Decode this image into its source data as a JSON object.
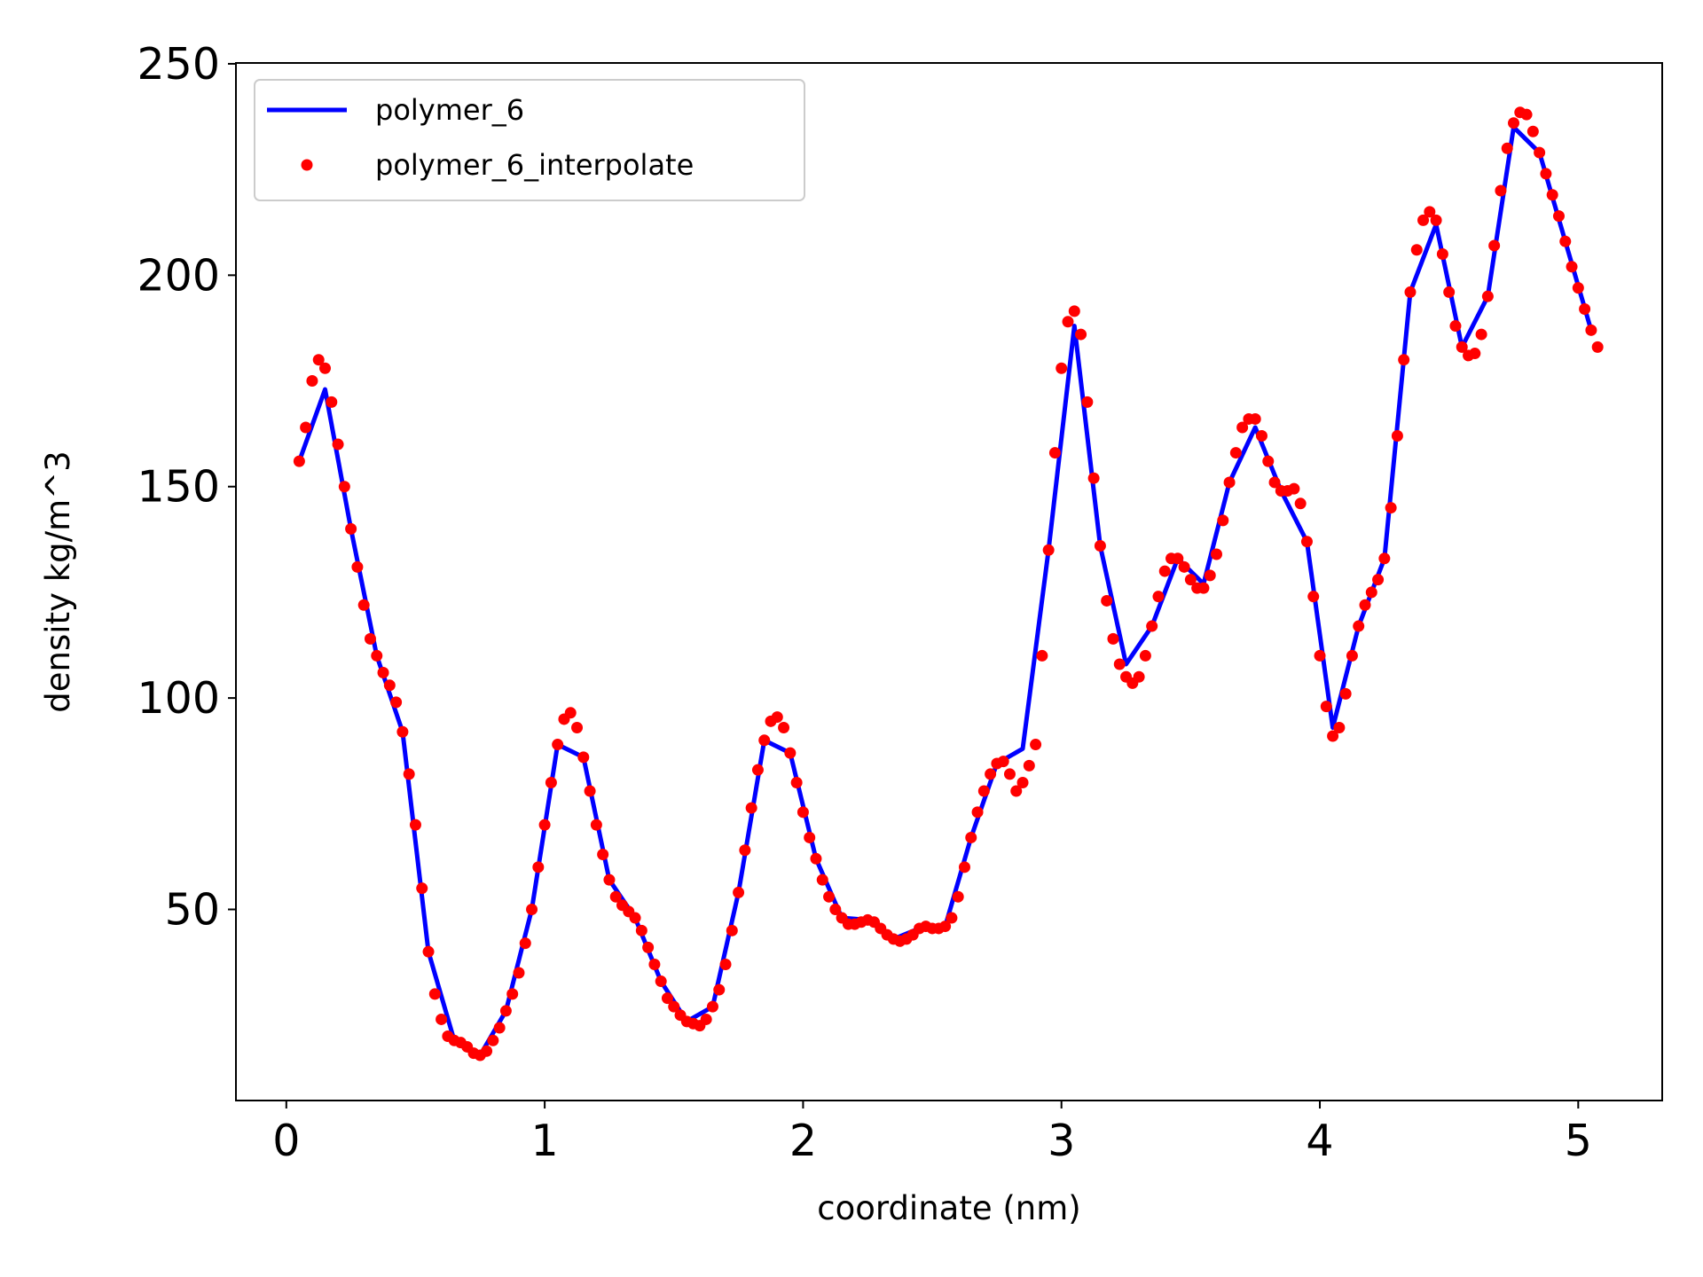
{
  "chart_data": {
    "type": "line",
    "x_label": "coordinate (nm)",
    "y_label": "density kg/m^3",
    "xlim": [
      -0.195,
      5.325
    ],
    "ylim": [
      4.8,
      250.2
    ],
    "xticks": [
      0,
      1,
      2,
      3,
      4,
      5
    ],
    "yticks": [
      50,
      100,
      150,
      200,
      250
    ],
    "grid": false,
    "legend_position": "upper-left",
    "series": [
      {
        "name": "polymer_6",
        "color": "#0000ff",
        "style": "line",
        "x": [
          0.05,
          0.15,
          0.25,
          0.35,
          0.45,
          0.55,
          0.65,
          0.75,
          0.85,
          0.95,
          1.05,
          1.15,
          1.25,
          1.35,
          1.45,
          1.55,
          1.65,
          1.75,
          1.85,
          1.95,
          2.05,
          2.15,
          2.25,
          2.35,
          2.45,
          2.55,
          2.65,
          2.75,
          2.85,
          2.95,
          3.05,
          3.15,
          3.25,
          3.35,
          3.45,
          3.55,
          3.65,
          3.75,
          3.85,
          3.95,
          4.05,
          4.15,
          4.25,
          4.35,
          4.45,
          4.55,
          4.65,
          4.75,
          4.85,
          4.95,
          5.05
        ],
        "values": [
          156,
          173,
          140,
          110,
          92,
          40,
          19,
          15.5,
          26,
          50,
          89,
          86,
          57,
          48,
          33,
          23.5,
          27,
          54,
          90,
          87,
          62,
          48,
          47.5,
          43,
          45.5,
          46,
          67,
          84.5,
          88,
          135,
          188,
          136,
          108,
          117,
          133,
          127,
          151,
          164,
          149,
          137,
          93,
          117,
          133,
          196,
          212,
          183,
          195,
          235,
          229,
          208,
          187
        ]
      },
      {
        "name": "polymer_6_interpolate",
        "color": "#ff0000",
        "style": "dots",
        "x": [
          0.05,
          0.075,
          0.1,
          0.125,
          0.15,
          0.175,
          0.2,
          0.225,
          0.25,
          0.275,
          0.3,
          0.325,
          0.35,
          0.375,
          0.4,
          0.425,
          0.45,
          0.475,
          0.5,
          0.525,
          0.55,
          0.575,
          0.6,
          0.625,
          0.65,
          0.675,
          0.7,
          0.725,
          0.75,
          0.775,
          0.8,
          0.825,
          0.85,
          0.875,
          0.9,
          0.925,
          0.95,
          0.975,
          1.0,
          1.025,
          1.05,
          1.075,
          1.1,
          1.125,
          1.15,
          1.175,
          1.2,
          1.225,
          1.25,
          1.275,
          1.3,
          1.325,
          1.35,
          1.375,
          1.4,
          1.425,
          1.45,
          1.475,
          1.5,
          1.525,
          1.55,
          1.575,
          1.6,
          1.625,
          1.65,
          1.675,
          1.7,
          1.725,
          1.75,
          1.775,
          1.8,
          1.825,
          1.85,
          1.875,
          1.9,
          1.925,
          1.95,
          1.975,
          2.0,
          2.025,
          2.05,
          2.075,
          2.1,
          2.125,
          2.15,
          2.175,
          2.2,
          2.225,
          2.25,
          2.275,
          2.3,
          2.325,
          2.35,
          2.375,
          2.4,
          2.425,
          2.45,
          2.475,
          2.5,
          2.525,
          2.55,
          2.575,
          2.6,
          2.625,
          2.65,
          2.675,
          2.7,
          2.725,
          2.75,
          2.775,
          2.8,
          2.825,
          2.85,
          2.875,
          2.9,
          2.925,
          2.95,
          2.975,
          3.0,
          3.025,
          3.05,
          3.075,
          3.1,
          3.125,
          3.15,
          3.175,
          3.2,
          3.225,
          3.25,
          3.275,
          3.3,
          3.325,
          3.35,
          3.375,
          3.4,
          3.425,
          3.45,
          3.475,
          3.5,
          3.525,
          3.55,
          3.575,
          3.6,
          3.625,
          3.65,
          3.675,
          3.7,
          3.725,
          3.75,
          3.775,
          3.8,
          3.825,
          3.85,
          3.875,
          3.9,
          3.925,
          3.95,
          3.975,
          4.0,
          4.025,
          4.05,
          4.075,
          4.1,
          4.125,
          4.15,
          4.175,
          4.2,
          4.225,
          4.25,
          4.275,
          4.3,
          4.325,
          4.35,
          4.375,
          4.4,
          4.425,
          4.45,
          4.475,
          4.5,
          4.525,
          4.55,
          4.575,
          4.6,
          4.625,
          4.65,
          4.675,
          4.7,
          4.725,
          4.75,
          4.775,
          4.8,
          4.825,
          4.85,
          4.875,
          4.9,
          4.925,
          4.95,
          4.975,
          5.0,
          5.025,
          5.05,
          5.075
        ],
        "values": [
          156,
          164,
          175,
          180,
          178,
          170,
          160,
          150,
          140,
          131,
          122,
          114,
          110,
          106,
          103,
          99,
          92,
          82,
          70,
          55,
          40,
          30,
          24,
          20,
          19,
          18.5,
          17.5,
          16,
          15.5,
          16.5,
          19,
          22,
          26,
          30,
          35,
          42,
          50,
          60,
          70,
          80,
          89,
          95,
          96.5,
          93,
          86,
          78,
          70,
          63,
          57,
          53,
          51,
          49.5,
          48,
          45,
          41,
          37,
          33,
          29,
          27,
          25,
          23.5,
          23,
          22.5,
          24,
          27,
          31,
          37,
          45,
          54,
          64,
          74,
          83,
          90,
          94.5,
          95.5,
          93,
          87,
          80,
          73,
          67,
          62,
          57,
          53,
          50,
          48,
          46.5,
          46.5,
          47,
          47.5,
          47,
          45.5,
          44,
          43,
          42.5,
          43,
          44,
          45.5,
          46,
          45.5,
          45.5,
          46,
          48,
          53,
          60,
          67,
          73,
          78,
          82,
          84.5,
          85,
          82,
          78,
          80,
          84,
          89,
          110,
          135,
          158,
          178,
          189,
          191.5,
          186,
          170,
          152,
          136,
          123,
          114,
          108,
          105,
          103.5,
          105,
          110,
          117,
          124,
          130,
          133,
          133,
          131,
          128,
          126,
          126,
          129,
          134,
          142,
          151,
          158,
          164,
          166,
          166,
          162,
          156,
          151,
          149,
          149,
          149.5,
          146,
          137,
          124,
          110,
          98,
          91,
          93,
          101,
          110,
          117,
          122,
          125,
          128,
          133,
          145,
          162,
          180,
          196,
          206,
          213,
          215,
          213,
          205,
          196,
          188,
          183,
          181,
          181.5,
          186,
          195,
          207,
          220,
          230,
          236,
          238.5,
          238,
          234,
          229,
          224,
          219,
          214,
          208,
          202,
          197,
          192,
          187,
          183
        ]
      }
    ]
  }
}
